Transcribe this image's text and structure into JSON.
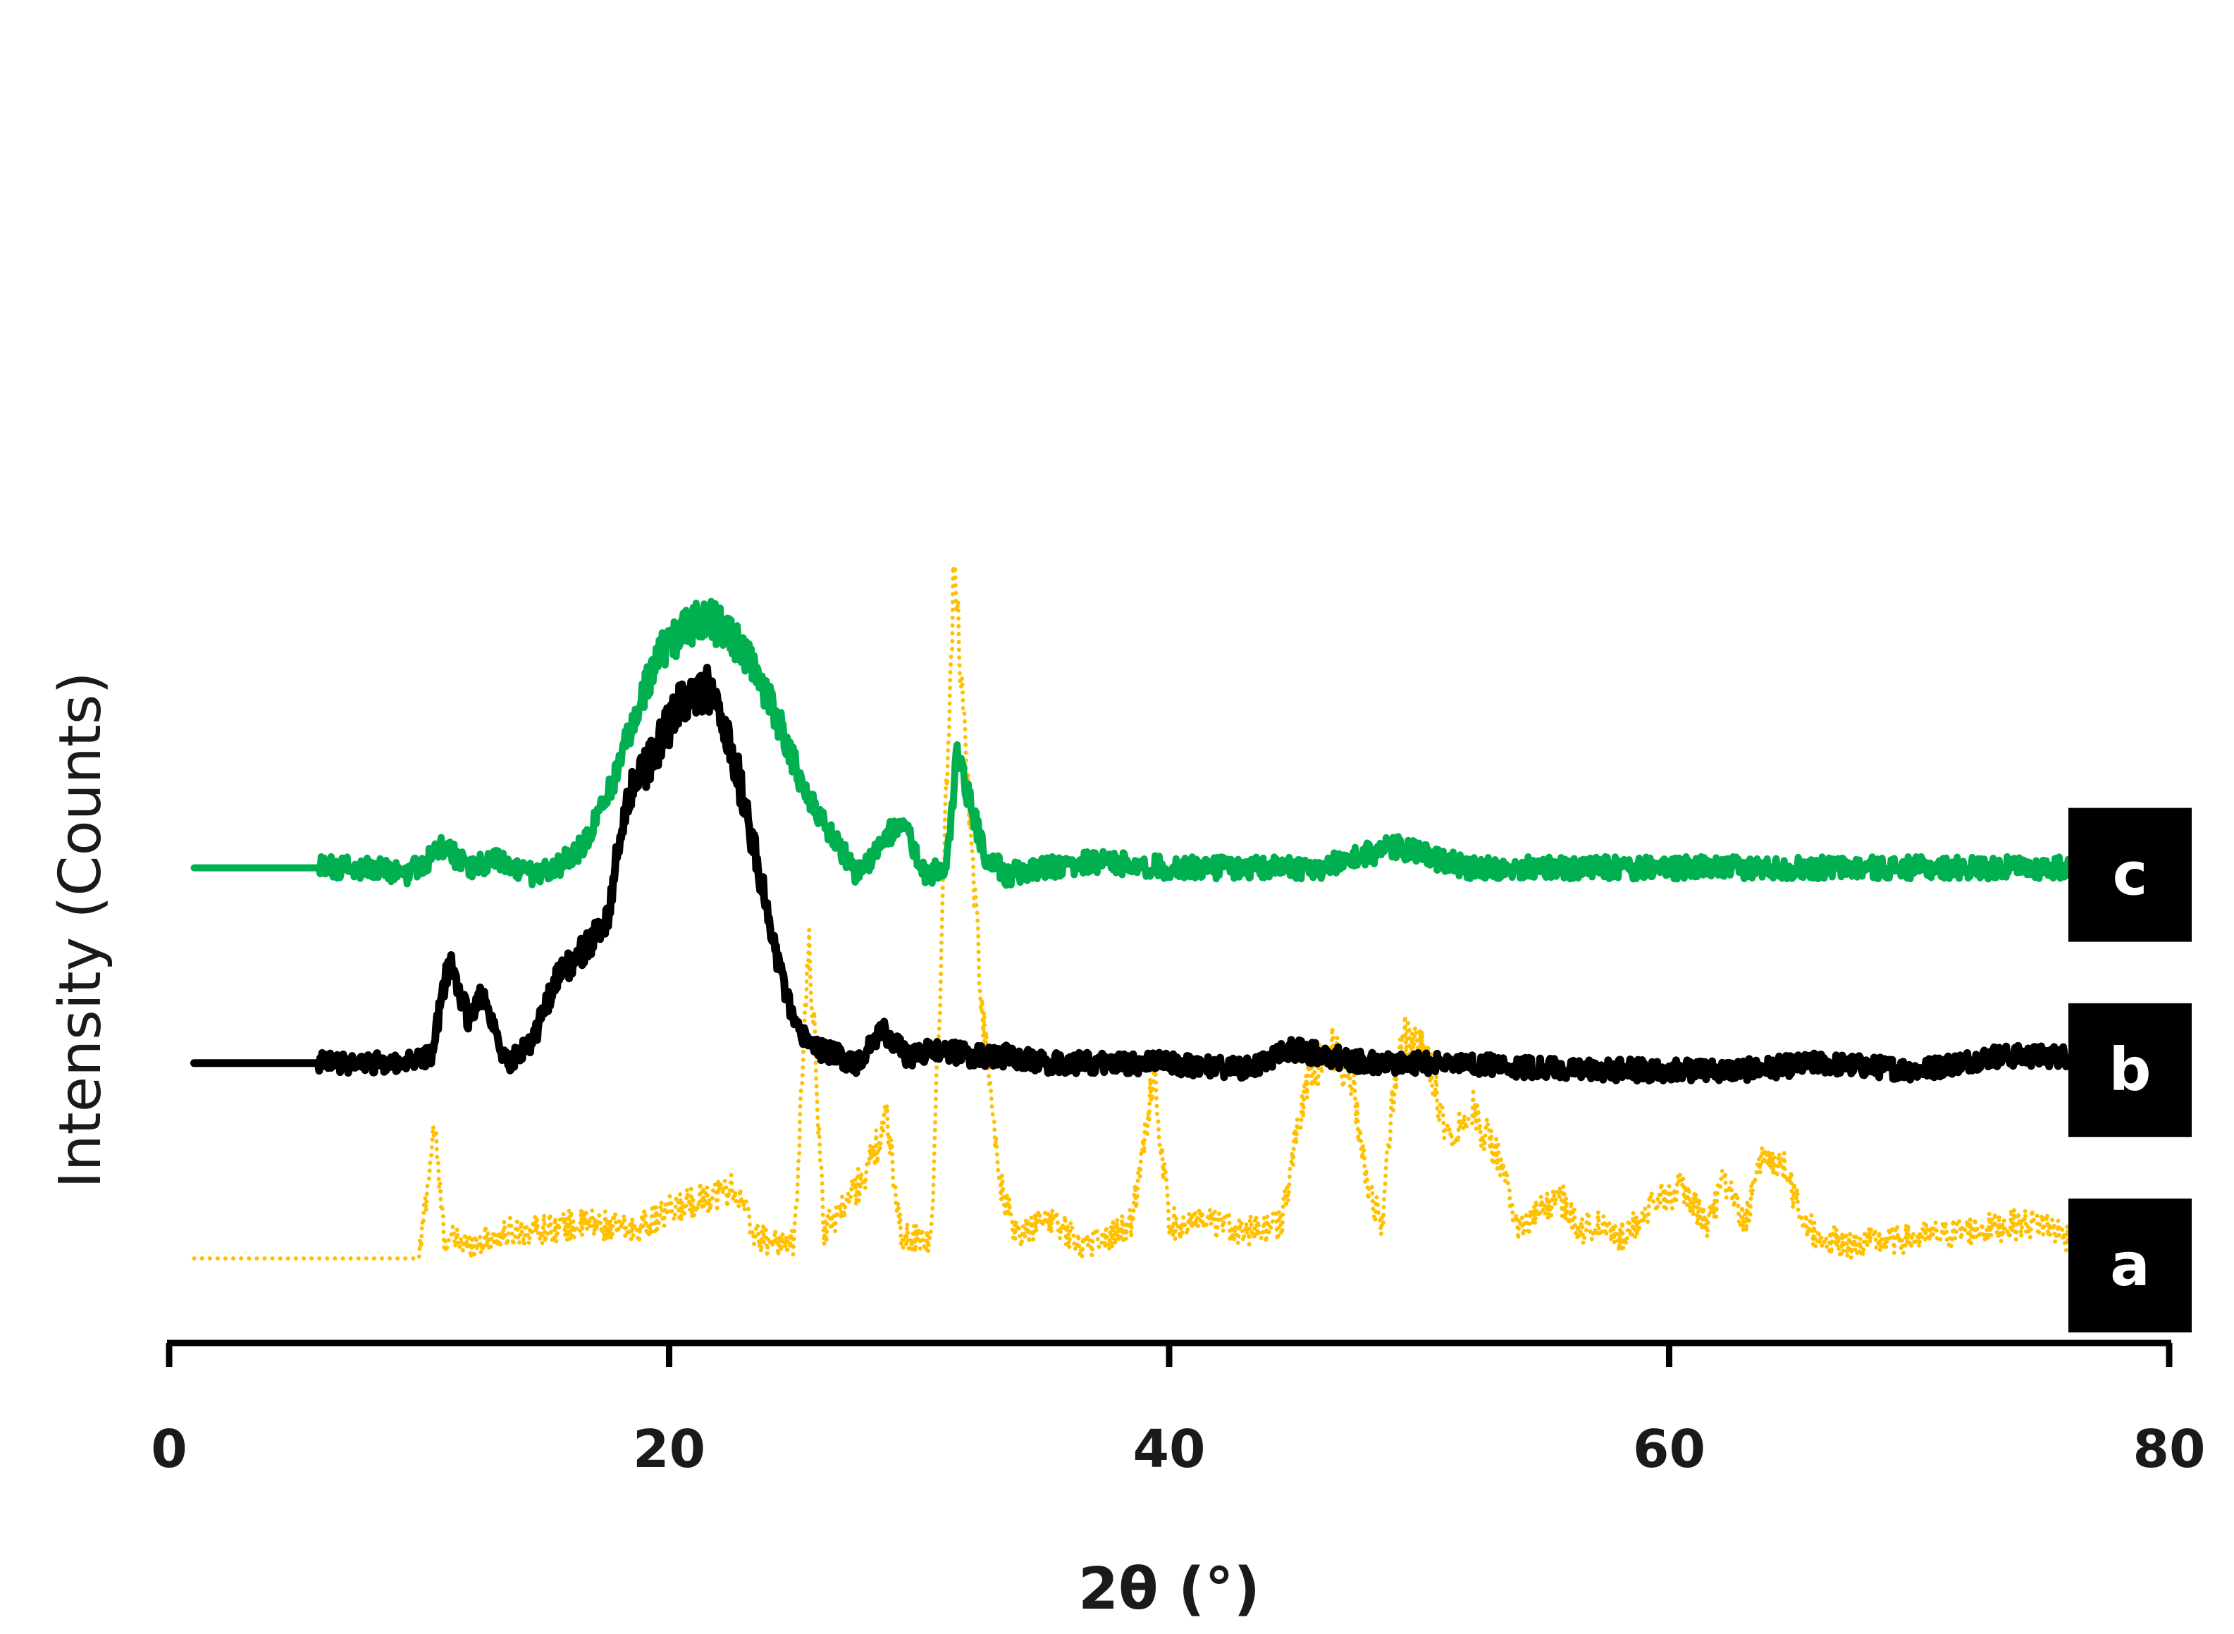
{
  "chart_data": {
    "type": "line",
    "title": "",
    "xlabel": "2θ (°)",
    "ylabel": "Intensity (Counts)",
    "xlim": [
      0,
      80
    ],
    "x_ticks": [
      "0",
      "20",
      "40",
      "60",
      "80"
    ],
    "y_ticks": [],
    "grid": false,
    "legend": "none",
    "note": "traces are vertically offset; y values are relative intensity (0 = trace baseline, 100 = tallest peak)",
    "series": [
      {
        "key": "a",
        "label": "a",
        "color": "#FFC000",
        "style": "dotted",
        "offset": 0,
        "baseline_noise": 2,
        "noise_start": 10,
        "x_start": 1,
        "x_end": 76,
        "x": [
          1,
          10,
          10.6,
          11,
          12,
          14,
          16.8,
          18.5,
          21.4,
          22.6,
          23.5,
          25,
          25.6,
          26.2,
          27.5,
          28.2,
          28.7,
          29.3,
          30.5,
          31.4,
          32.5,
          33.2,
          33.9,
          35.2,
          36.5,
          37.5,
          38.5,
          39.4,
          40,
          41.5,
          43.5,
          44.5,
          45.5,
          46.5,
          47.3,
          47.9,
          48.5,
          49.2,
          50,
          50.5,
          51.2,
          52,
          53.1,
          54,
          55.6,
          56.5,
          57,
          58,
          59.8,
          60.5,
          61.5,
          62.2,
          63,
          63.8,
          64.6,
          65.3,
          66,
          67,
          69.9,
          72,
          74,
          75,
          76
        ],
        "y": [
          0,
          0,
          19,
          3,
          2,
          4,
          5,
          4,
          9,
          10,
          3,
          2,
          46,
          4,
          10,
          15,
          20,
          3,
          3,
          100,
          36,
          11,
          3,
          6,
          2,
          3,
          5,
          27,
          5,
          5,
          4,
          5,
          26,
          30,
          26,
          11,
          5,
          32,
          30,
          27,
          17,
          22,
          15,
          4,
          9,
          4,
          5,
          3,
          9,
          10,
          5,
          11,
          5,
          15,
          13,
          6,
          3,
          2,
          3,
          4,
          5,
          5,
          3
        ]
      },
      {
        "key": "b",
        "label": "b",
        "color": "#000000",
        "style": "solid",
        "offset": 28,
        "baseline_noise": 1.5,
        "noise_start": 6,
        "x_start": 1,
        "x_end": 76,
        "x": [
          1,
          6,
          9,
          10.5,
          11.2,
          12,
          12.5,
          13.5,
          14.5,
          15.5,
          16.5,
          17.5,
          18.3,
          19.5,
          20.5,
          21,
          21.5,
          22.2,
          23,
          24,
          25,
          26,
          27.5,
          28.5,
          29.5,
          31,
          32,
          33.5,
          35,
          37,
          40,
          43,
          45,
          48,
          52,
          56,
          60,
          63,
          66,
          70,
          73,
          76
        ],
        "y": [
          0,
          0,
          0,
          1,
          15,
          6,
          10,
          0,
          3,
          12,
          16,
          20,
          38,
          45,
          52,
          52,
          54,
          48,
          38,
          20,
          5,
          2,
          0,
          5,
          1,
          2,
          1,
          1,
          0,
          0,
          0,
          -1,
          2,
          0,
          0,
          -1,
          -1,
          -1,
          0,
          -1,
          1,
          1
        ]
      },
      {
        "key": "c",
        "label": "c",
        "color": "#00B050",
        "style": "solid",
        "offset": 56,
        "baseline_noise": 1.6,
        "noise_start": 6,
        "x_start": 1,
        "x_end": 76,
        "x": [
          1,
          6,
          8.5,
          9.5,
          11,
          12,
          13,
          14.5,
          15.5,
          16.5,
          17.5,
          18.5,
          19.5,
          20.5,
          21,
          21.5,
          22.5,
          23.5,
          24.5,
          25.5,
          26.5,
          27.5,
          28.5,
          29.2,
          30.3,
          31.1,
          31.5,
          31.9,
          32.6,
          33.5,
          35,
          37,
          40,
          43,
          46,
          49,
          52,
          56,
          60,
          65,
          70,
          76
        ],
        "y": [
          0,
          0,
          0,
          -1,
          3,
          0,
          1,
          -1,
          0,
          3,
          10,
          20,
          30,
          34,
          35,
          36,
          33,
          28,
          20,
          10,
          5,
          -1,
          3,
          7,
          -1,
          0,
          16,
          11,
          2,
          -1,
          0,
          1,
          0,
          0,
          0,
          3,
          0,
          0,
          0,
          0,
          0,
          0
        ]
      }
    ]
  }
}
